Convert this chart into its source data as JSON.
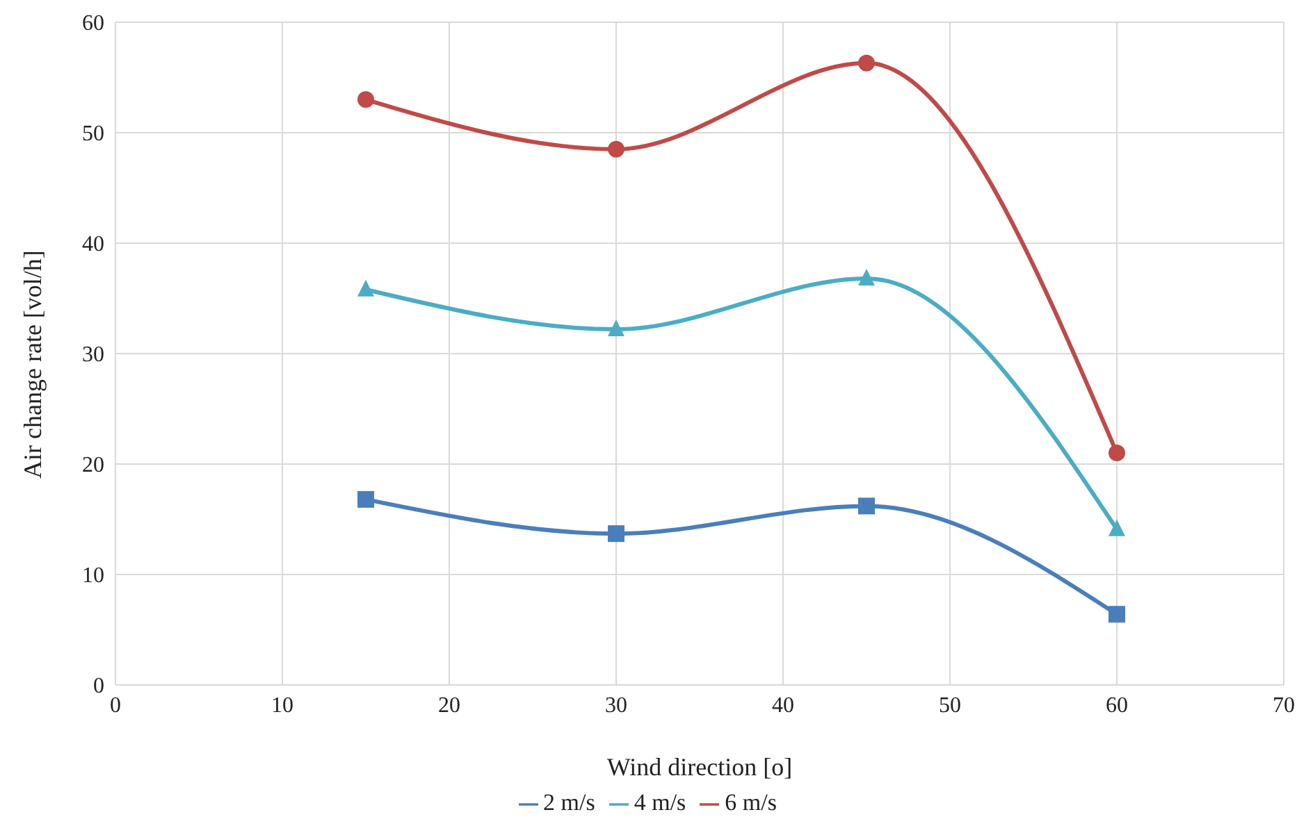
{
  "chart_data": {
    "type": "line",
    "xlabel": "Wind direction [o]",
    "ylabel": "Air change rate [vol/h]",
    "x": [
      15,
      30,
      45,
      60
    ],
    "series": [
      {
        "name": "2 m/s",
        "color": "#4a7ebb",
        "values": [
          16.8,
          13.7,
          16.2,
          6.4
        ],
        "marker": "square"
      },
      {
        "name": "4 m/s",
        "color": "#4bacc6",
        "values": [
          35.8,
          32.2,
          36.8,
          14.1
        ],
        "marker": "triangle"
      },
      {
        "name": "6 m/s",
        "color": "#be4b48",
        "values": [
          53,
          48.5,
          56.3,
          21
        ],
        "marker": "circle"
      }
    ],
    "xlim": [
      0,
      70
    ],
    "xticks": [
      0,
      10,
      20,
      30,
      40,
      50,
      60,
      70
    ],
    "ylim": [
      0,
      60
    ],
    "yticks": [
      0,
      10,
      20,
      30,
      40,
      50,
      60
    ],
    "grid": true,
    "legend": "bottom",
    "line_style": "solid"
  }
}
